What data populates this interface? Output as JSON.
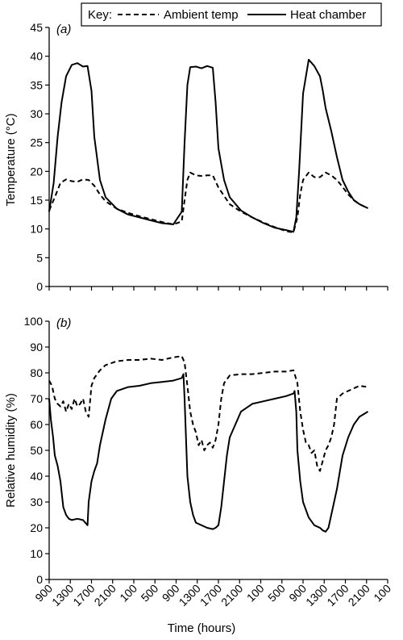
{
  "legend": {
    "key_label": "Key:",
    "ambient_label": "Ambient temp",
    "heat_label": "Heat chamber"
  },
  "chart_data": [
    {
      "type": "line",
      "panel_label": "(a)",
      "ylabel": "Temperature (°C)",
      "xlabel": "",
      "xlim": [
        0,
        60
      ],
      "ylim": [
        0,
        45
      ],
      "yticks": [
        0,
        5,
        10,
        15,
        20,
        25,
        30,
        35,
        40,
        45
      ],
      "grid": false,
      "legend_position": "top-right",
      "series": [
        {
          "name": "Ambient temp",
          "style": "dashed",
          "x": [
            0,
            1,
            2,
            3,
            4,
            5,
            6,
            7,
            8,
            9,
            10,
            12,
            14,
            16,
            18,
            20,
            22,
            23.5,
            24,
            24.5,
            25,
            26,
            27,
            28,
            29,
            30,
            32,
            34,
            36,
            38,
            40,
            42,
            43.3,
            44,
            44.5,
            45,
            46,
            47,
            48,
            49,
            50,
            51,
            52,
            53,
            54,
            55,
            56.5
          ],
          "y": [
            13.2,
            15.5,
            18.0,
            18.6,
            18.3,
            18.2,
            18.6,
            18.5,
            17.5,
            16.0,
            14.8,
            13.5,
            12.8,
            12.2,
            11.7,
            11.2,
            10.8,
            11.3,
            15.0,
            18.5,
            19.8,
            19.3,
            19.2,
            19.3,
            19.3,
            17.2,
            14.3,
            13.0,
            12.0,
            11.1,
            10.3,
            9.6,
            9.4,
            12.0,
            16.0,
            18.5,
            19.8,
            19.0,
            19.0,
            19.8,
            19.3,
            18.5,
            17.3,
            16.0,
            15.0,
            14.3,
            13.6
          ]
        },
        {
          "name": "Heat chamber",
          "style": "solid",
          "x": [
            0,
            0.8,
            1.5,
            2.2,
            3,
            4,
            5,
            6,
            6.8,
            7.5,
            8,
            9,
            10,
            12,
            14,
            16,
            18,
            20,
            22,
            23.5,
            24,
            24.5,
            25,
            26,
            27,
            28,
            29,
            29.5,
            30,
            31,
            32,
            34,
            36,
            38,
            40,
            42,
            43.3,
            43.8,
            44.3,
            45,
            46,
            47,
            48,
            48.5,
            49,
            50,
            51,
            52,
            53,
            54,
            55,
            56.5
          ],
          "y": [
            13.0,
            18.0,
            26.0,
            32.0,
            36.5,
            38.5,
            38.8,
            38.2,
            38.3,
            34.0,
            26.0,
            18.5,
            15.5,
            13.5,
            12.5,
            12.0,
            11.5,
            11.0,
            10.8,
            13.0,
            25.0,
            35.0,
            38.1,
            38.2,
            37.9,
            38.3,
            38.0,
            32.0,
            24.0,
            18.5,
            15.5,
            13.2,
            12.0,
            11.0,
            10.2,
            9.8,
            9.5,
            12.0,
            20.0,
            33.5,
            39.4,
            38.3,
            36.5,
            34.0,
            31.0,
            27.0,
            22.5,
            18.5,
            16.5,
            15.0,
            14.3,
            13.6
          ]
        }
      ]
    },
    {
      "type": "line",
      "panel_label": "(b)",
      "ylabel": "Relative humidity (%)",
      "xlabel": "Time (hours)",
      "xlim": [
        0,
        60
      ],
      "ylim": [
        0,
        100
      ],
      "yticks": [
        0,
        10,
        20,
        30,
        40,
        50,
        60,
        70,
        80,
        90,
        100
      ],
      "xticks": [
        "900",
        "1300",
        "1700",
        "2100",
        "100",
        "500",
        "900",
        "1300",
        "1700",
        "2100",
        "100",
        "500",
        "900",
        "1300",
        "1700",
        "2100",
        "100"
      ],
      "grid": false,
      "series": [
        {
          "name": "Ambient temp",
          "style": "dashed",
          "x": [
            0,
            0.5,
            1,
            1.5,
            2,
            2.5,
            3,
            3.5,
            4,
            4.5,
            5,
            5.5,
            6,
            6.5,
            7,
            7.5,
            8,
            9,
            10,
            12,
            14,
            16,
            18,
            20,
            22,
            23.5,
            24,
            24.5,
            25,
            25.5,
            26,
            26.5,
            27,
            27.5,
            28,
            28.5,
            29,
            29.5,
            30,
            30.5,
            31,
            32,
            34,
            36,
            38,
            40,
            42,
            43.3,
            44,
            44.5,
            45,
            45.5,
            46,
            46.5,
            47,
            47.5,
            48,
            48.5,
            49,
            49.5,
            50,
            50.5,
            51,
            52,
            53,
            54,
            55,
            56.5
          ],
          "y": [
            77,
            75,
            70,
            68,
            67,
            69,
            65,
            68,
            66,
            70,
            67,
            68,
            70,
            65,
            63,
            75,
            78,
            81,
            83,
            84.5,
            85,
            85,
            85.5,
            85,
            86,
            86.5,
            84,
            75,
            65,
            60,
            57,
            52,
            54,
            50,
            52,
            53,
            51,
            54,
            60,
            70,
            76,
            79,
            79.5,
            79.5,
            80,
            80.5,
            80.5,
            81,
            76,
            65,
            58,
            53,
            52,
            49,
            50,
            44,
            42,
            46,
            50,
            52,
            55,
            60,
            70,
            72,
            73,
            74,
            75,
            74.5
          ]
        },
        {
          "name": "Heat chamber",
          "style": "solid",
          "x": [
            0,
            0.3,
            0.7,
            1,
            1.5,
            2,
            2.5,
            3,
            3.5,
            4,
            5,
            6,
            6.8,
            7,
            7.5,
            8,
            8.5,
            9,
            10,
            11,
            12,
            14,
            16,
            18,
            20,
            22,
            23.5,
            23.8,
            24,
            24.5,
            25,
            25.5,
            26,
            27,
            28,
            29,
            29.5,
            30,
            30.5,
            31,
            31.5,
            32,
            34,
            36,
            38,
            40,
            42,
            43.3,
            43.5,
            43.8,
            44,
            44.5,
            45,
            46,
            47,
            48,
            48.5,
            49,
            49.5,
            50,
            50.5,
            51,
            52,
            53,
            54,
            55,
            56.5
          ],
          "y": [
            70,
            62,
            55,
            48,
            44,
            38,
            28,
            25,
            23.5,
            23,
            23.5,
            23,
            21,
            30,
            38,
            42,
            45,
            52,
            62,
            70,
            73,
            74.5,
            75,
            76,
            76.5,
            77,
            78,
            79.5,
            70,
            40,
            30,
            25,
            22,
            21,
            20,
            19.5,
            20,
            21,
            28,
            38,
            48,
            55,
            65,
            68,
            69,
            70,
            71,
            72,
            73,
            65,
            50,
            38,
            30,
            24,
            21,
            20,
            19,
            18.5,
            20,
            25,
            30,
            35,
            48,
            55,
            60,
            63,
            65
          ]
        }
      ]
    }
  ]
}
